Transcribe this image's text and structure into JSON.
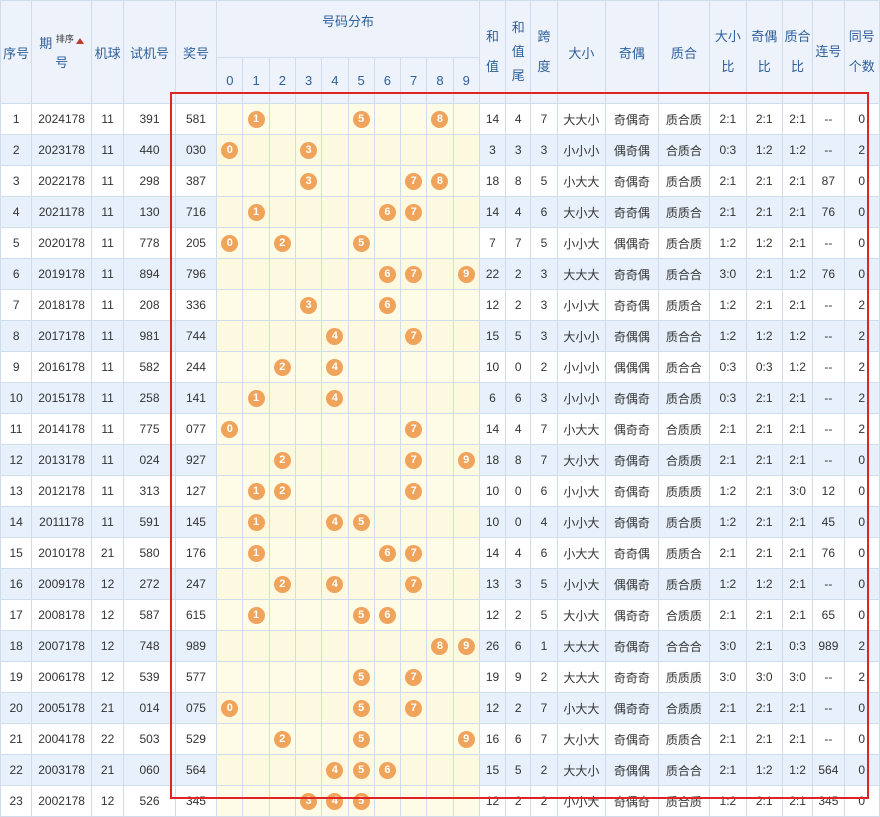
{
  "header": {
    "seq": "序号",
    "period_a": "期",
    "period_b": "号",
    "sort_label": "排序",
    "machine": "机球",
    "test": "试机号",
    "prize": "奖号",
    "dist": "号码分布",
    "digits": [
      "0",
      "1",
      "2",
      "3",
      "4",
      "5",
      "6",
      "7",
      "8",
      "9"
    ],
    "sum": "和值",
    "sum_tail": "和值尾",
    "span": "跨度",
    "size": "大小",
    "parity": "奇偶",
    "prime": "质合",
    "size_ratio": "大小比",
    "parity_ratio": "奇偶比",
    "prime_ratio": "质合比",
    "consec": "连号",
    "same": "同号个数"
  },
  "rows": [
    {
      "seq": "1",
      "period": "2024178",
      "machine": "11",
      "test": "391",
      "prize": "581",
      "sum": "14",
      "tail": "4",
      "span": "7",
      "size": "大大小",
      "parity": "奇偶奇",
      "prime": "质合质",
      "sr": "2:1",
      "pr": "2:1",
      "qr": "2:1",
      "consec": "--",
      "same": "0"
    },
    {
      "seq": "2",
      "period": "2023178",
      "machine": "11",
      "test": "440",
      "prize": "030",
      "sum": "3",
      "tail": "3",
      "span": "3",
      "size": "小小小",
      "parity": "偶奇偶",
      "prime": "合质合",
      "sr": "0:3",
      "pr": "1:2",
      "qr": "1:2",
      "consec": "--",
      "same": "2"
    },
    {
      "seq": "3",
      "period": "2022178",
      "machine": "11",
      "test": "298",
      "prize": "387",
      "sum": "18",
      "tail": "8",
      "span": "5",
      "size": "小大大",
      "parity": "奇偶奇",
      "prime": "质合质",
      "sr": "2:1",
      "pr": "2:1",
      "qr": "2:1",
      "consec": "87",
      "same": "0"
    },
    {
      "seq": "4",
      "period": "2021178",
      "machine": "11",
      "test": "130",
      "prize": "716",
      "sum": "14",
      "tail": "4",
      "span": "6",
      "size": "大小大",
      "parity": "奇奇偶",
      "prime": "质质合",
      "sr": "2:1",
      "pr": "2:1",
      "qr": "2:1",
      "consec": "76",
      "same": "0"
    },
    {
      "seq": "5",
      "period": "2020178",
      "machine": "11",
      "test": "778",
      "prize": "205",
      "sum": "7",
      "tail": "7",
      "span": "5",
      "size": "小小大",
      "parity": "偶偶奇",
      "prime": "质合质",
      "sr": "1:2",
      "pr": "1:2",
      "qr": "2:1",
      "consec": "--",
      "same": "0"
    },
    {
      "seq": "6",
      "period": "2019178",
      "machine": "11",
      "test": "894",
      "prize": "796",
      "sum": "22",
      "tail": "2",
      "span": "3",
      "size": "大大大",
      "parity": "奇奇偶",
      "prime": "质合合",
      "sr": "3:0",
      "pr": "2:1",
      "qr": "1:2",
      "consec": "76",
      "same": "0"
    },
    {
      "seq": "7",
      "period": "2018178",
      "machine": "11",
      "test": "208",
      "prize": "336",
      "sum": "12",
      "tail": "2",
      "span": "3",
      "size": "小小大",
      "parity": "奇奇偶",
      "prime": "质质合",
      "sr": "1:2",
      "pr": "2:1",
      "qr": "2:1",
      "consec": "--",
      "same": "2"
    },
    {
      "seq": "8",
      "period": "2017178",
      "machine": "11",
      "test": "981",
      "prize": "744",
      "sum": "15",
      "tail": "5",
      "span": "3",
      "size": "大小小",
      "parity": "奇偶偶",
      "prime": "质合合",
      "sr": "1:2",
      "pr": "1:2",
      "qr": "1:2",
      "consec": "--",
      "same": "2"
    },
    {
      "seq": "9",
      "period": "2016178",
      "machine": "11",
      "test": "582",
      "prize": "244",
      "sum": "10",
      "tail": "0",
      "span": "2",
      "size": "小小小",
      "parity": "偶偶偶",
      "prime": "质合合",
      "sr": "0:3",
      "pr": "0:3",
      "qr": "1:2",
      "consec": "--",
      "same": "2"
    },
    {
      "seq": "10",
      "period": "2015178",
      "machine": "11",
      "test": "258",
      "prize": "141",
      "sum": "6",
      "tail": "6",
      "span": "3",
      "size": "小小小",
      "parity": "奇偶奇",
      "prime": "质合质",
      "sr": "0:3",
      "pr": "2:1",
      "qr": "2:1",
      "consec": "--",
      "same": "2"
    },
    {
      "seq": "11",
      "period": "2014178",
      "machine": "11",
      "test": "775",
      "prize": "077",
      "sum": "14",
      "tail": "4",
      "span": "7",
      "size": "小大大",
      "parity": "偶奇奇",
      "prime": "合质质",
      "sr": "2:1",
      "pr": "2:1",
      "qr": "2:1",
      "consec": "--",
      "same": "2"
    },
    {
      "seq": "12",
      "period": "2013178",
      "machine": "11",
      "test": "024",
      "prize": "927",
      "sum": "18",
      "tail": "8",
      "span": "7",
      "size": "大小大",
      "parity": "奇偶奇",
      "prime": "合质质",
      "sr": "2:1",
      "pr": "2:1",
      "qr": "2:1",
      "consec": "--",
      "same": "0"
    },
    {
      "seq": "13",
      "period": "2012178",
      "machine": "11",
      "test": "313",
      "prize": "127",
      "sum": "10",
      "tail": "0",
      "span": "6",
      "size": "小小大",
      "parity": "奇偶奇",
      "prime": "质质质",
      "sr": "1:2",
      "pr": "2:1",
      "qr": "3:0",
      "consec": "12",
      "same": "0"
    },
    {
      "seq": "14",
      "period": "2011178",
      "machine": "11",
      "test": "591",
      "prize": "145",
      "sum": "10",
      "tail": "0",
      "span": "4",
      "size": "小小大",
      "parity": "奇偶奇",
      "prime": "质合质",
      "sr": "1:2",
      "pr": "2:1",
      "qr": "2:1",
      "consec": "45",
      "same": "0"
    },
    {
      "seq": "15",
      "period": "2010178",
      "machine": "21",
      "test": "580",
      "prize": "176",
      "sum": "14",
      "tail": "4",
      "span": "6",
      "size": "小大大",
      "parity": "奇奇偶",
      "prime": "质质合",
      "sr": "2:1",
      "pr": "2:1",
      "qr": "2:1",
      "consec": "76",
      "same": "0"
    },
    {
      "seq": "16",
      "period": "2009178",
      "machine": "12",
      "test": "272",
      "prize": "247",
      "sum": "13",
      "tail": "3",
      "span": "5",
      "size": "小小大",
      "parity": "偶偶奇",
      "prime": "质合质",
      "sr": "1:2",
      "pr": "1:2",
      "qr": "2:1",
      "consec": "--",
      "same": "0"
    },
    {
      "seq": "17",
      "period": "2008178",
      "machine": "12",
      "test": "587",
      "prize": "615",
      "sum": "12",
      "tail": "2",
      "span": "5",
      "size": "大小大",
      "parity": "偶奇奇",
      "prime": "合质质",
      "sr": "2:1",
      "pr": "2:1",
      "qr": "2:1",
      "consec": "65",
      "same": "0"
    },
    {
      "seq": "18",
      "period": "2007178",
      "machine": "12",
      "test": "748",
      "prize": "989",
      "sum": "26",
      "tail": "6",
      "span": "1",
      "size": "大大大",
      "parity": "奇偶奇",
      "prime": "合合合",
      "sr": "3:0",
      "pr": "2:1",
      "qr": "0:3",
      "consec": "989",
      "same": "2"
    },
    {
      "seq": "19",
      "period": "2006178",
      "machine": "12",
      "test": "539",
      "prize": "577",
      "sum": "19",
      "tail": "9",
      "span": "2",
      "size": "大大大",
      "parity": "奇奇奇",
      "prime": "质质质",
      "sr": "3:0",
      "pr": "3:0",
      "qr": "3:0",
      "consec": "--",
      "same": "2"
    },
    {
      "seq": "20",
      "period": "2005178",
      "machine": "21",
      "test": "014",
      "prize": "075",
      "sum": "12",
      "tail": "2",
      "span": "7",
      "size": "小大大",
      "parity": "偶奇奇",
      "prime": "合质质",
      "sr": "2:1",
      "pr": "2:1",
      "qr": "2:1",
      "consec": "--",
      "same": "0"
    },
    {
      "seq": "21",
      "period": "2004178",
      "machine": "22",
      "test": "503",
      "prize": "529",
      "sum": "16",
      "tail": "6",
      "span": "7",
      "size": "大小大",
      "parity": "奇偶奇",
      "prime": "质质合",
      "sr": "2:1",
      "pr": "2:1",
      "qr": "2:1",
      "consec": "--",
      "same": "0"
    },
    {
      "seq": "22",
      "period": "2003178",
      "machine": "21",
      "test": "060",
      "prize": "564",
      "sum": "15",
      "tail": "5",
      "span": "2",
      "size": "大大小",
      "parity": "奇偶偶",
      "prime": "质合合",
      "sr": "2:1",
      "pr": "1:2",
      "qr": "1:2",
      "consec": "564",
      "same": "0"
    },
    {
      "seq": "23",
      "period": "2002178",
      "machine": "12",
      "test": "526",
      "prize": "345",
      "sum": "12",
      "tail": "2",
      "span": "2",
      "size": "小小大",
      "parity": "奇偶奇",
      "prime": "质合质",
      "sr": "1:2",
      "pr": "2:1",
      "qr": "2:1",
      "consec": "345",
      "same": "0"
    }
  ],
  "colors": {
    "ball": "#f0a35a",
    "highlight_box": "#e02424",
    "header_text": "#2d5f9b"
  }
}
